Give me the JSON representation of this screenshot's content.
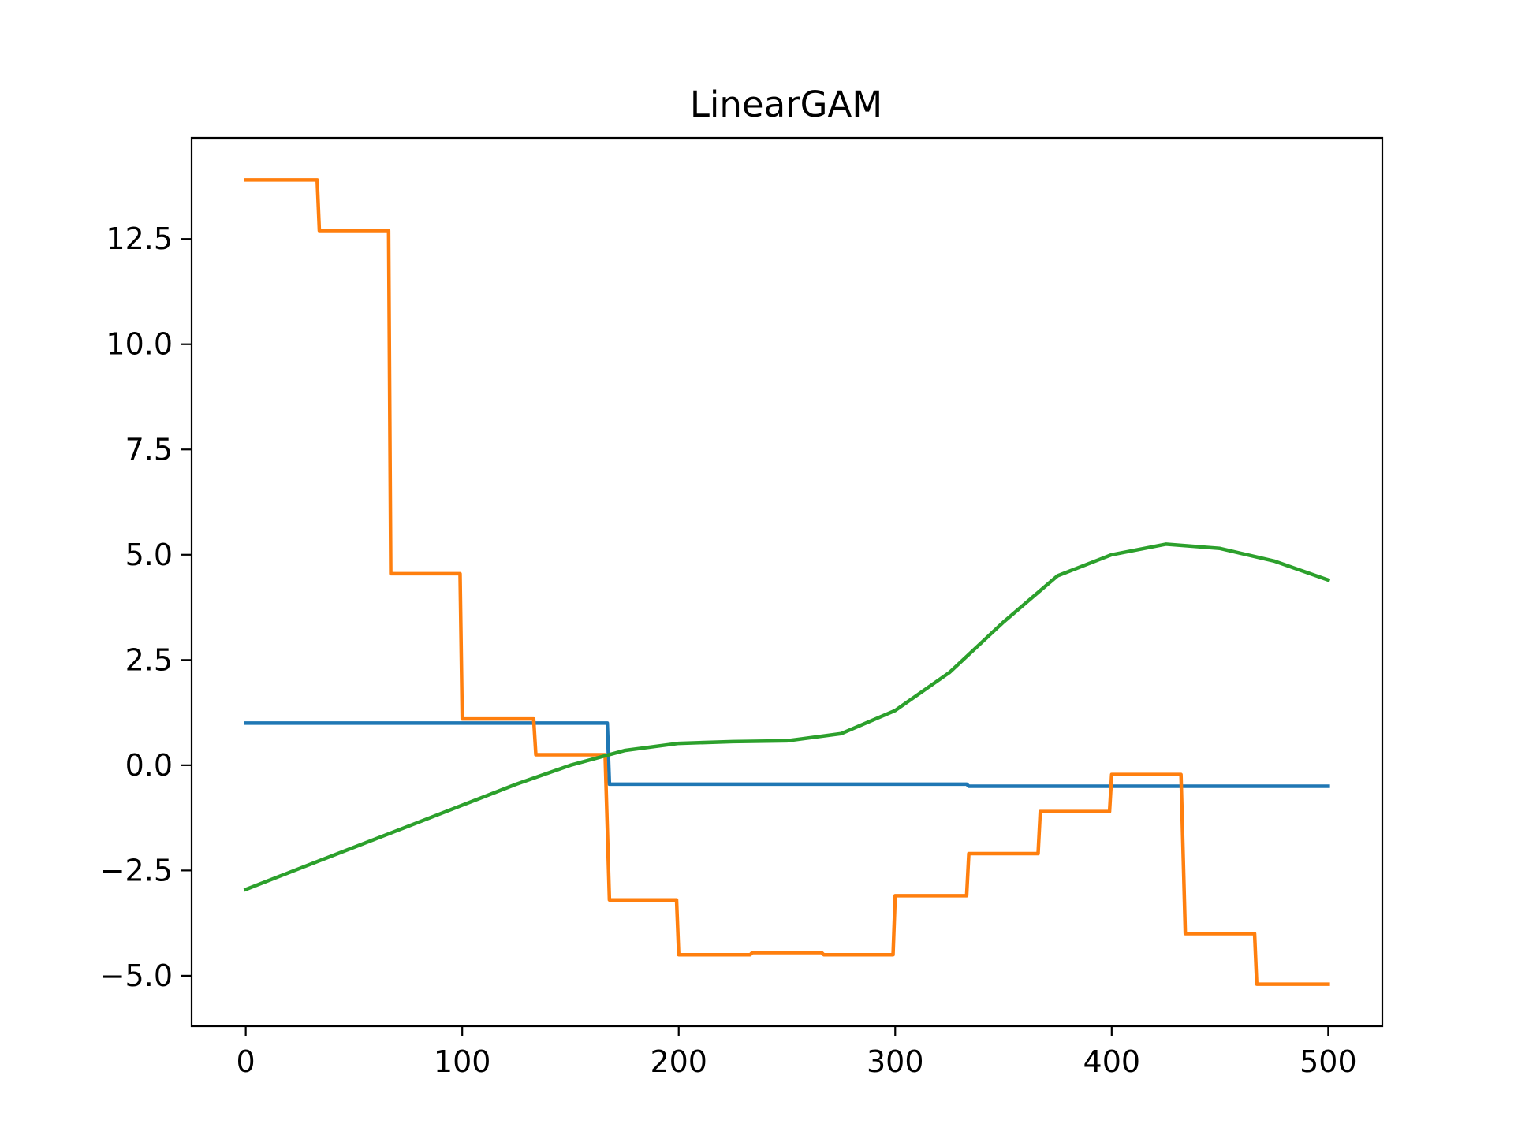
{
  "chart_data": {
    "type": "line",
    "title": "LinearGAM",
    "xlabel": "",
    "ylabel": "",
    "xlim": [
      -25,
      525
    ],
    "ylim": [
      -6.2,
      14.9
    ],
    "x_ticks": [
      0,
      100,
      200,
      300,
      400,
      500
    ],
    "x_tick_labels": [
      "0",
      "100",
      "200",
      "300",
      "400",
      "500"
    ],
    "y_ticks": [
      -5.0,
      -2.5,
      0.0,
      2.5,
      5.0,
      7.5,
      10.0,
      12.5
    ],
    "y_tick_labels": [
      "−5.0",
      "−2.5",
      "0.0",
      "2.5",
      "5.0",
      "7.5",
      "10.0",
      "12.5"
    ],
    "grid": false,
    "legend": "none",
    "colors": [
      "#1f77b4",
      "#ff7f0e",
      "#2ca02c"
    ],
    "series": [
      {
        "x": [
          0,
          167,
          168,
          333,
          334,
          500
        ],
        "y": [
          1.0,
          1.0,
          -0.45,
          -0.45,
          -0.5,
          -0.5
        ]
      },
      {
        "x": [
          0,
          33,
          34,
          66,
          67,
          99,
          100,
          133,
          134,
          166,
          168,
          199,
          200,
          233,
          234,
          266,
          267,
          299,
          300,
          333,
          334,
          366,
          367,
          399,
          400,
          432,
          434,
          466,
          467,
          500
        ],
        "y": [
          13.9,
          13.9,
          12.7,
          12.7,
          4.55,
          4.55,
          1.1,
          1.1,
          0.25,
          0.25,
          -3.2,
          -3.2,
          -4.5,
          -4.5,
          -4.45,
          -4.45,
          -4.5,
          -4.5,
          -3.1,
          -3.1,
          -2.1,
          -2.1,
          -1.1,
          -1.1,
          -0.22,
          -0.22,
          -4.0,
          -4.0,
          -5.2,
          -5.2
        ]
      },
      {
        "x": [
          0,
          25,
          50,
          75,
          100,
          125,
          150,
          175,
          200,
          225,
          250,
          275,
          300,
          325,
          350,
          375,
          400,
          425,
          450,
          475,
          500
        ],
        "y": [
          -2.95,
          -2.45,
          -1.95,
          -1.45,
          -0.95,
          -0.45,
          0.0,
          0.35,
          0.52,
          0.56,
          0.58,
          0.75,
          1.3,
          2.2,
          3.4,
          4.5,
          5.0,
          5.25,
          5.15,
          4.85,
          4.4
        ]
      }
    ]
  }
}
